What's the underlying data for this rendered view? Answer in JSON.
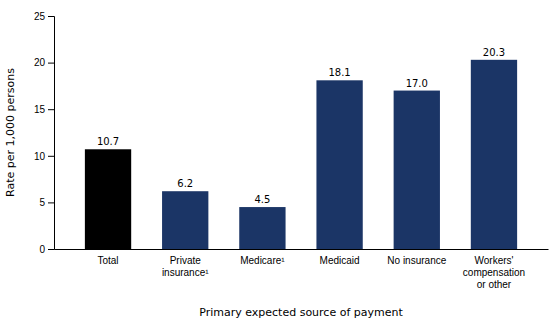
{
  "chart_data": {
    "type": "bar",
    "categories": [
      "Total",
      "Private\ninsurance¹",
      "Medicare¹",
      "Medicaid",
      "No insurance",
      "Workers'\ncompensation\nor other"
    ],
    "values": [
      10.7,
      6.2,
      4.5,
      18.1,
      17.0,
      20.3
    ],
    "value_labels": [
      "10.7",
      "6.2",
      "4.5",
      "18.1",
      "17.0",
      "20.3"
    ],
    "data_labels": true,
    "colors": [
      "#000000",
      "#1b3566",
      "#1b3566",
      "#1b3566",
      "#1b3566",
      "#1b3566"
    ],
    "ylabel": "Rate per 1,000 persons",
    "xlabel": "Primary expected source of payment",
    "ylim": [
      0,
      25
    ],
    "yticks": [
      0,
      5,
      10,
      15,
      20,
      25
    ],
    "grid": false
  }
}
